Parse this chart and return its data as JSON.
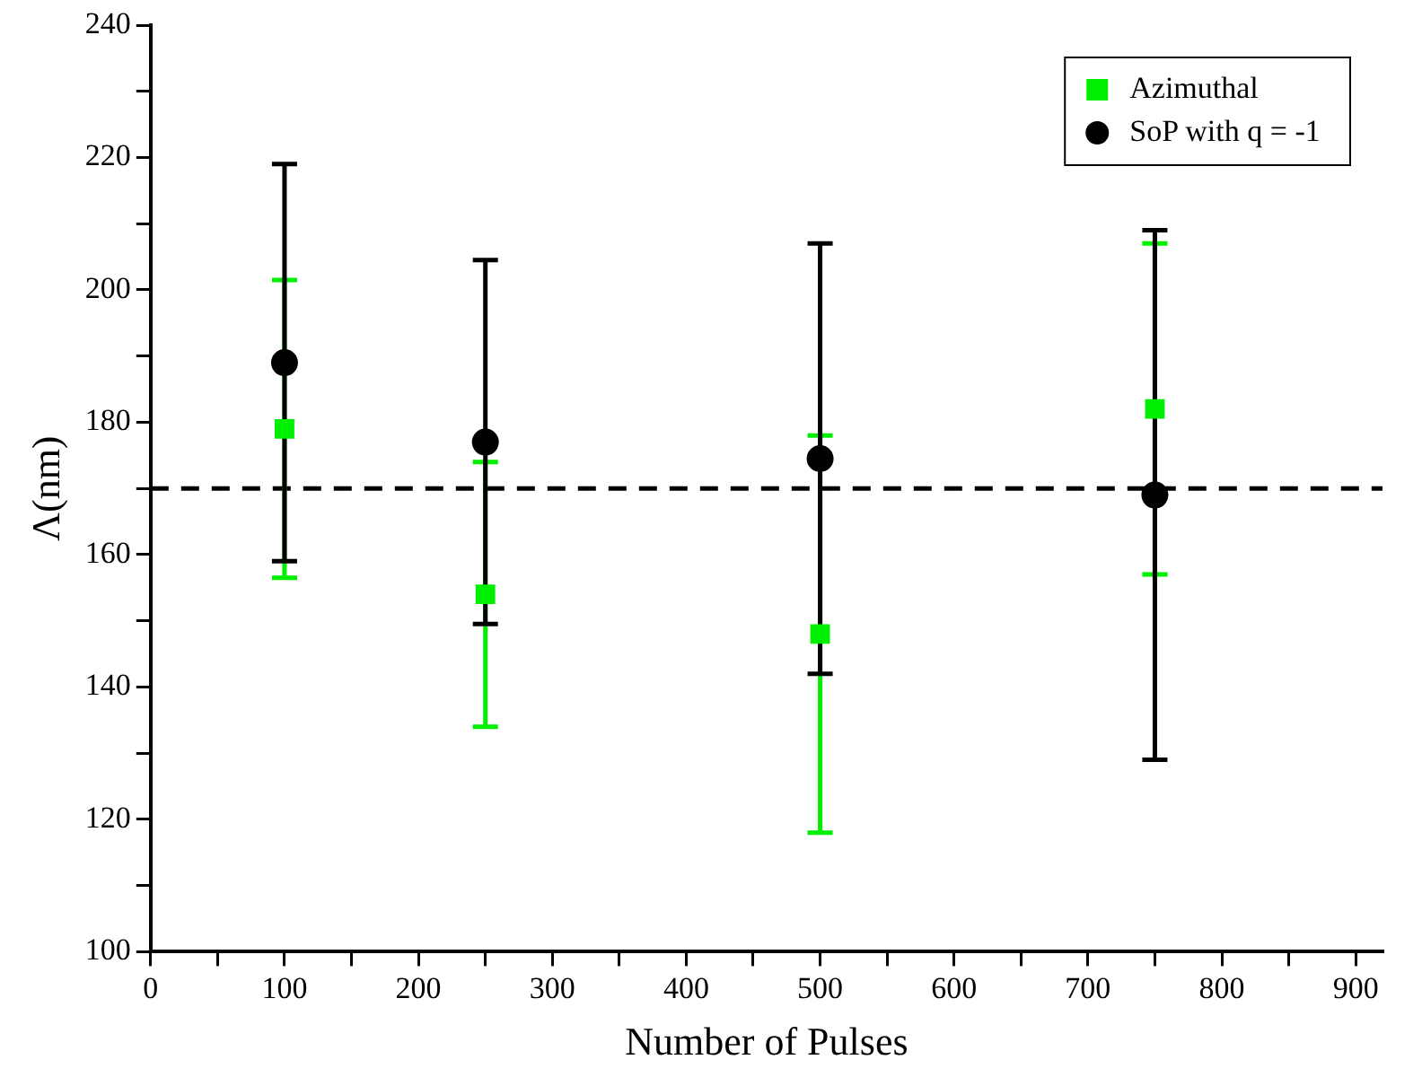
{
  "chart_data": {
    "type": "scatter",
    "xlabel": "Number of Pulses",
    "ylabel": "Λ(nm)",
    "xlim": [
      0,
      920
    ],
    "ylim": [
      100,
      240
    ],
    "xticks": [
      0,
      {
        "value": 50,
        "label": null
      },
      100,
      {
        "value": 150,
        "label": null
      },
      200,
      {
        "value": 250,
        "label": null
      },
      300,
      {
        "value": 350,
        "label": null
      },
      400,
      {
        "value": 450,
        "label": null
      },
      500,
      {
        "value": 550,
        "label": null
      },
      600,
      {
        "value": 650,
        "label": null
      },
      700,
      {
        "value": 750,
        "label": null
      },
      800,
      {
        "value": 850,
        "label": null
      },
      900
    ],
    "yticks": [
      100,
      {
        "value": 110,
        "label": null
      },
      120,
      {
        "value": 130,
        "label": null
      },
      140,
      {
        "value": 150,
        "label": null
      },
      160,
      {
        "value": 170,
        "label": null
      },
      180,
      {
        "value": 190,
        "label": null
      },
      200,
      {
        "value": 210,
        "label": null
      },
      220,
      {
        "value": 230,
        "label": null
      },
      240
    ],
    "grid": false,
    "legend": "top right",
    "ref_lines": [
      {
        "axis": "y",
        "value": 170,
        "color": "#000000",
        "line_style": "dashed"
      }
    ],
    "series": [
      {
        "name": "Azimuthal",
        "color": "#00ee00",
        "marker": "square",
        "x": [
          100,
          250,
          500,
          750
        ],
        "values": [
          179,
          154,
          148,
          182
        ],
        "errors": [
          22.5,
          20,
          30,
          25
        ]
      },
      {
        "name": "SoP with q = -1",
        "color": "#000000",
        "marker": "circle",
        "x": [
          100,
          250,
          500,
          750
        ],
        "values": [
          189,
          177,
          174.5,
          169
        ],
        "errors": [
          30,
          27.5,
          32.5,
          40
        ]
      }
    ]
  }
}
